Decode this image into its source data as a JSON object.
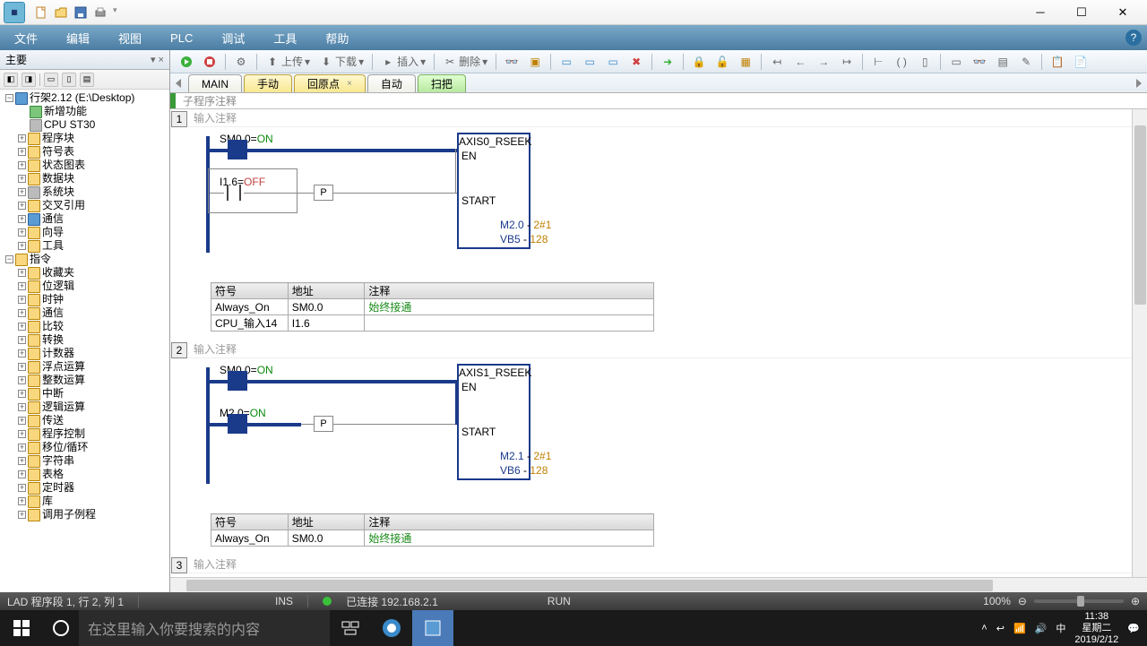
{
  "titlebar": {
    "qat_tip": ""
  },
  "menubar": {
    "items": [
      "文件",
      "编辑",
      "视图",
      "PLC",
      "调试",
      "工具",
      "帮助"
    ]
  },
  "leftpanel": {
    "title": "主要",
    "project": "行架2.12 (E:\\Desktop)",
    "project_children": [
      "新增功能",
      "CPU ST30",
      "程序块",
      "符号表",
      "状态图表",
      "数据块",
      "系统块",
      "交叉引用",
      "通信",
      "向导",
      "工具"
    ],
    "instructions_root": "指令",
    "instruction_groups": [
      "收藏夹",
      "位逻辑",
      "时钟",
      "通信",
      "比较",
      "转换",
      "计数器",
      "浮点运算",
      "整数运算",
      "中断",
      "逻辑运算",
      "传送",
      "程序控制",
      "移位/循环",
      "字符串",
      "表格",
      "定时器",
      "库",
      "调用子例程"
    ]
  },
  "toolbar": {
    "upload": "上传",
    "download": "下载",
    "insert": "插入",
    "delete": "删除"
  },
  "tabs": {
    "items": [
      {
        "label": "MAIN",
        "style": "normal"
      },
      {
        "label": "手动",
        "style": "active"
      },
      {
        "label": "回原点",
        "style": "active",
        "closable": true
      },
      {
        "label": "自动",
        "style": "normal"
      },
      {
        "label": "扫把",
        "style": "highlight"
      }
    ]
  },
  "subheader": "子程序注释",
  "networks": [
    {
      "num": "1",
      "title": "输入注释",
      "rungs": [
        {
          "addr": "SM0.0",
          "state": "ON",
          "closed": true
        },
        {
          "addr": "I1.6",
          "state": "OFF",
          "closed": false,
          "p": true
        }
      ],
      "fb": {
        "title": "AXIS0_RSEEK",
        "inputs": [
          "EN",
          "",
          "START"
        ],
        "outputs": [
          {
            "addr": "M2.0",
            "val": "2#1"
          },
          {
            "addr": "VB5",
            "val": "128"
          }
        ]
      },
      "symtable": {
        "headers": [
          "符号",
          "地址",
          "注释"
        ],
        "rows": [
          [
            "Always_On",
            "SM0.0",
            "始终接通"
          ],
          [
            "CPU_输入14",
            "I1.6",
            ""
          ]
        ]
      }
    },
    {
      "num": "2",
      "title": "输入注释",
      "rungs": [
        {
          "addr": "SM0.0",
          "state": "ON",
          "closed": true
        },
        {
          "addr": "M2.0",
          "state": "ON",
          "closed": true,
          "p": true
        }
      ],
      "fb": {
        "title": "AXIS1_RSEEK",
        "inputs": [
          "EN",
          "",
          "START"
        ],
        "outputs": [
          {
            "addr": "M2.1",
            "val": "2#1"
          },
          {
            "addr": "VB6",
            "val": "128"
          }
        ]
      },
      "symtable": {
        "headers": [
          "符号",
          "地址",
          "注释"
        ],
        "rows": [
          [
            "Always_On",
            "SM0.0",
            "始终接通"
          ]
        ]
      }
    },
    {
      "num": "3",
      "title": "输入注释"
    }
  ],
  "statusbar": {
    "pos": "LAD 程序段 1, 行 2, 列 1",
    "ins": "INS",
    "conn": "已连接 192.168.2.1",
    "mode": "RUN",
    "zoom": "100%"
  },
  "taskbar": {
    "search_placeholder": "在这里输入你要搜索的内容",
    "ime": "中",
    "time": "11:38",
    "date": "星期二",
    "fulldate": "2019/2/12"
  },
  "colors": {
    "rail": "#1a3a8a",
    "on": "#0a8a0a",
    "off": "#c04040",
    "val": "#c08000"
  }
}
